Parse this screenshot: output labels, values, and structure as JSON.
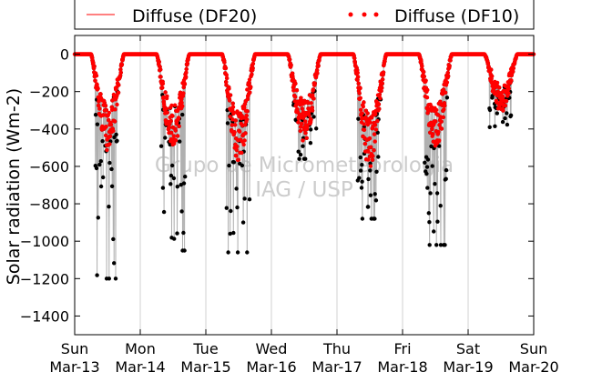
{
  "chart_data": {
    "type": "scatter",
    "title": "",
    "ylabel": "Solar radiation (Wm-2)",
    "xlabel": "",
    "ylim": [
      -1500,
      100
    ],
    "yticks": [
      0,
      -200,
      -400,
      -600,
      -800,
      -1000,
      -1200,
      -1400
    ],
    "xlim": [
      0,
      7
    ],
    "xticks": [
      {
        "day": "Sun",
        "date": "Mar-13"
      },
      {
        "day": "Mon",
        "date": "Mar-14"
      },
      {
        "day": "Tue",
        "date": "Mar-15"
      },
      {
        "day": "Wed",
        "date": "Mar-16"
      },
      {
        "day": "Thu",
        "date": "Mar-17"
      },
      {
        "day": "Fri",
        "date": "Mar-18"
      },
      {
        "day": "Sat",
        "date": "Mar-19"
      },
      {
        "day": "Sun",
        "date": "Mar-20"
      }
    ],
    "grid": "vertical",
    "legend_position": "top",
    "watermark": [
      "Grupo de Micrometeorologia",
      "IAG / USP"
    ],
    "series": [
      {
        "name": "Diffuse (DF20)",
        "style": "line",
        "color": "#ff0000"
      },
      {
        "name": "Diffuse (DF10)",
        "style": "dots",
        "color": "#ff0000"
      }
    ],
    "daily_profile": [
      {
        "day_start": 0,
        "min_red": -560,
        "min_black": -1200
      },
      {
        "day_start": 1,
        "min_red": -560,
        "min_black": -1050
      },
      {
        "day_start": 2,
        "min_red": -640,
        "min_black": -1060
      },
      {
        "day_start": 3,
        "min_red": -520,
        "min_black": -560
      },
      {
        "day_start": 4,
        "min_red": -660,
        "min_black": -880
      },
      {
        "day_start": 5,
        "min_red": -560,
        "min_black": -1020
      },
      {
        "day_start": 6,
        "min_red": -340,
        "min_black": -390
      }
    ],
    "day_window_hours": [
      6,
      18
    ]
  }
}
